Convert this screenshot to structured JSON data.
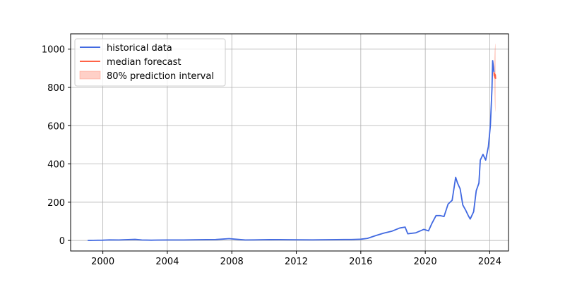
{
  "chart_data": {
    "type": "line",
    "title": "",
    "xlabel": "",
    "ylabel": "",
    "xlim": [
      "1998-01-01",
      "2025-03-01"
    ],
    "ylim": [
      -55,
      1080
    ],
    "grid": true,
    "legend_placement": "top-left",
    "x_ticks": [
      "2000",
      "2004",
      "2008",
      "2012",
      "2016",
      "2020",
      "2024"
    ],
    "y_ticks": [
      "0",
      "200",
      "400",
      "600",
      "800",
      "1000"
    ],
    "colors": {
      "historical": "#4169e1",
      "forecast": "#ff6347",
      "interval": "#ff6347"
    },
    "legend": [
      {
        "label": "historical data",
        "kind": "line",
        "color": "#4169e1"
      },
      {
        "label": "median forecast",
        "kind": "line",
        "color": "#ff6347"
      },
      {
        "label": "80% prediction interval",
        "kind": "patch",
        "color": "#ff6347"
      }
    ],
    "series": [
      {
        "name": "historical data",
        "points": [
          [
            "1999-01-22",
            0.4
          ],
          [
            "1999-06-01",
            0.8
          ],
          [
            "2000-01-01",
            1.5
          ],
          [
            "2000-06-01",
            3
          ],
          [
            "2001-01-01",
            2.5
          ],
          [
            "2001-06-01",
            4
          ],
          [
            "2002-01-01",
            5.5
          ],
          [
            "2002-06-01",
            2.5
          ],
          [
            "2003-01-01",
            1.5
          ],
          [
            "2003-06-01",
            2
          ],
          [
            "2004-01-01",
            2.5
          ],
          [
            "2005-01-01",
            2.5
          ],
          [
            "2006-01-01",
            4
          ],
          [
            "2006-06-01",
            4.5
          ],
          [
            "2007-01-01",
            5
          ],
          [
            "2007-06-01",
            7
          ],
          [
            "2007-11-01",
            9.5
          ],
          [
            "2008-03-01",
            7
          ],
          [
            "2008-11-01",
            2.5
          ],
          [
            "2009-06-01",
            3
          ],
          [
            "2010-01-01",
            4
          ],
          [
            "2011-01-01",
            4.5
          ],
          [
            "2011-06-01",
            4
          ],
          [
            "2012-01-01",
            3.5
          ],
          [
            "2013-01-01",
            3
          ],
          [
            "2014-01-01",
            4
          ],
          [
            "2015-01-01",
            5
          ],
          [
            "2015-06-01",
            5
          ],
          [
            "2016-01-01",
            6.5
          ],
          [
            "2016-06-01",
            11
          ],
          [
            "2016-12-01",
            25
          ],
          [
            "2017-06-01",
            38
          ],
          [
            "2017-12-01",
            48
          ],
          [
            "2018-06-01",
            65
          ],
          [
            "2018-10-01",
            70
          ],
          [
            "2018-12-01",
            35
          ],
          [
            "2019-06-01",
            40
          ],
          [
            "2019-12-01",
            58
          ],
          [
            "2020-03-15",
            50
          ],
          [
            "2020-06-01",
            90
          ],
          [
            "2020-09-01",
            130
          ],
          [
            "2020-12-01",
            130
          ],
          [
            "2021-03-01",
            125
          ],
          [
            "2021-06-01",
            190
          ],
          [
            "2021-09-01",
            210
          ],
          [
            "2021-11-20",
            330
          ],
          [
            "2022-01-01",
            300
          ],
          [
            "2022-03-01",
            270
          ],
          [
            "2022-05-01",
            185
          ],
          [
            "2022-07-01",
            160
          ],
          [
            "2022-09-01",
            130
          ],
          [
            "2022-10-15",
            112
          ],
          [
            "2023-01-01",
            150
          ],
          [
            "2023-03-01",
            260
          ],
          [
            "2023-05-01",
            300
          ],
          [
            "2023-06-01",
            420
          ],
          [
            "2023-08-01",
            450
          ],
          [
            "2023-10-01",
            420
          ],
          [
            "2023-12-01",
            490
          ],
          [
            "2024-01-15",
            600
          ],
          [
            "2024-02-20",
            790
          ],
          [
            "2024-03-07",
            940
          ],
          [
            "2024-03-25",
            905
          ],
          [
            "2024-04-05",
            880
          ]
        ]
      },
      {
        "name": "median forecast",
        "points": [
          [
            "2024-04-05",
            880
          ],
          [
            "2024-04-12",
            860
          ],
          [
            "2024-04-20",
            872
          ],
          [
            "2024-04-28",
            850
          ],
          [
            "2024-05-06",
            866
          ],
          [
            "2024-05-14",
            845
          ]
        ]
      }
    ],
    "interval": {
      "name": "80% prediction interval",
      "points": [
        [
          "2024-04-05",
          860,
          900
        ],
        [
          "2024-04-12",
          790,
          950
        ],
        [
          "2024-04-20",
          740,
          990
        ],
        [
          "2024-04-28",
          700,
          1010
        ],
        [
          "2024-05-06",
          680,
          1025
        ],
        [
          "2024-05-14",
          670,
          1030
        ]
      ]
    }
  }
}
